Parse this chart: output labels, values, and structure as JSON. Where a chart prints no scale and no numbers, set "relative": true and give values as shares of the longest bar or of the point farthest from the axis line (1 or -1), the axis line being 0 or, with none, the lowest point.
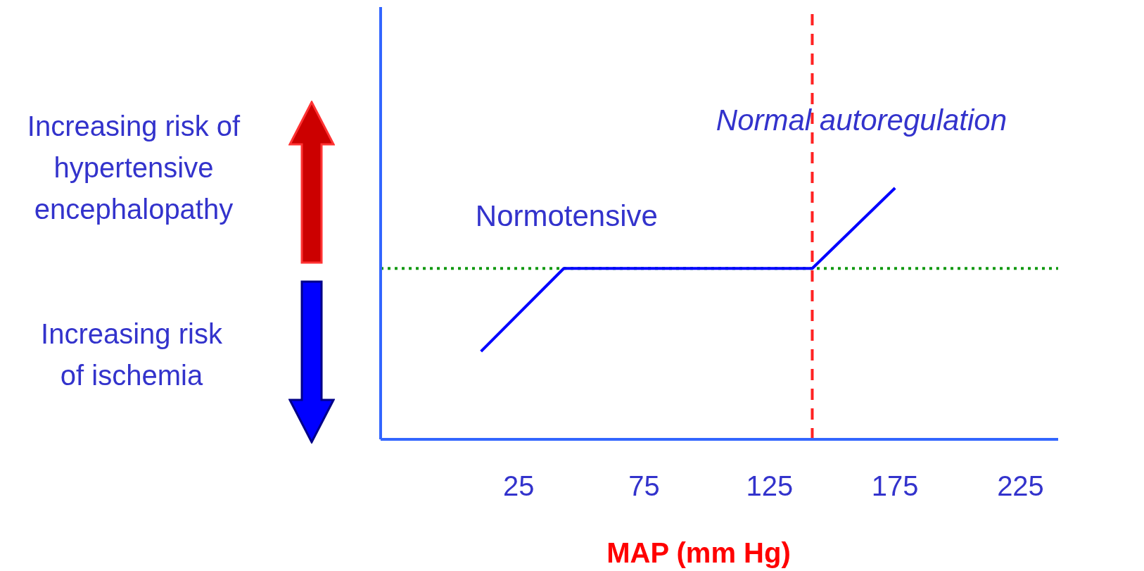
{
  "chart_data": {
    "type": "line",
    "xlabel": "MAP (mm Hg)",
    "relative": true,
    "xlim": [
      -30,
      240
    ],
    "xticks": [
      25,
      75,
      125,
      175,
      225
    ],
    "marker": "none",
    "line_style": "solid",
    "series": [
      {
        "name": "Normotensive",
        "color": "#0000ff",
        "x": [
          10,
          43,
          142,
          175
        ],
        "values": [
          0.35,
          0.68,
          0.68,
          1
        ]
      }
    ],
    "ref_lines": [
      {
        "axis": "x",
        "value": 142,
        "label": "Normal autoregulation",
        "color": "#ff2222",
        "line_style": "dashed"
      },
      {
        "axis": "y",
        "value": 0.68,
        "color": "#119911",
        "line_style": "dotted"
      }
    ],
    "annotations": [
      "Increasing risk of hypertensive encephalopathy",
      "Increasing risk of ischemia"
    ]
  }
}
